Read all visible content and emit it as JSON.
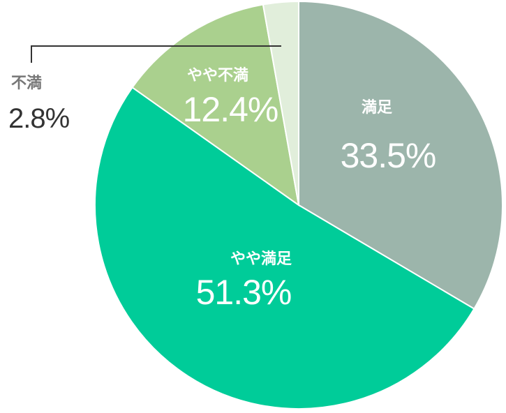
{
  "chart_data": {
    "type": "pie",
    "title": "",
    "start": "top",
    "direction": "clockwise",
    "legend": "none",
    "slices": [
      {
        "label": "満足",
        "value": 33.5,
        "value_label": "33.5%",
        "color": "#9cb5ab",
        "text_color": "#ffffff"
      },
      {
        "label": "やや満足",
        "value": 51.3,
        "value_label": "51.3%",
        "color": "#00cc99",
        "text_color": "#ffffff"
      },
      {
        "label": "やや不満",
        "value": 12.4,
        "value_label": "12.4%",
        "color": "#aad08e",
        "text_color": "#ffffff"
      },
      {
        "label": "不満",
        "value": 2.8,
        "value_label": "2.8%",
        "color": "#e1eedb",
        "text_color": "#333333",
        "name_color": "#777777",
        "callout": true
      }
    ]
  }
}
